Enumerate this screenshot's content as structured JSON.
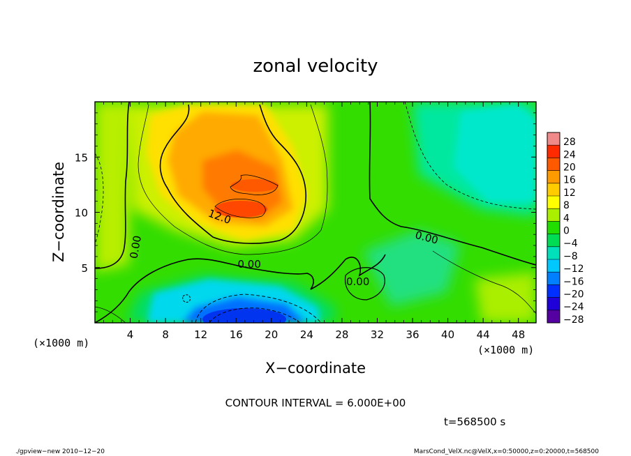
{
  "chart_data": {
    "type": "heatmap",
    "title": "zonal velocity",
    "xlabel": "X−coordinate",
    "ylabel": "Z−coordinate",
    "x_unit": "(×1000 m)",
    "y_unit": "(×1000 m)",
    "xlim": [
      0,
      50
    ],
    "ylim": [
      0,
      20
    ],
    "x_ticks": [
      "4",
      "8",
      "12",
      "16",
      "20",
      "24",
      "28",
      "32",
      "36",
      "40",
      "44",
      "48"
    ],
    "x_tick_values": [
      4,
      8,
      12,
      16,
      20,
      24,
      28,
      32,
      36,
      40,
      44,
      48
    ],
    "y_ticks": [
      "5",
      "10",
      "15"
    ],
    "y_tick_values": [
      5,
      10,
      15
    ],
    "colorbar_labels": [
      "28",
      "24",
      "20",
      "16",
      "12",
      "8",
      "4",
      "0",
      "−4",
      "−8",
      "−12",
      "−16",
      "−20",
      "−24",
      "−28"
    ],
    "colorbar_levels": [
      28,
      24,
      20,
      16,
      12,
      8,
      4,
      0,
      -4,
      -8,
      -12,
      -16,
      -20,
      -24,
      -28
    ],
    "colorbar_colors": [
      "#f08a8a",
      "#ff2a00",
      "#ff5a00",
      "#ff9a00",
      "#ffcc00",
      "#ffff00",
      "#aaee00",
      "#22dd00",
      "#00dd55",
      "#00e0bb",
      "#00c8ff",
      "#0080ff",
      "#0030ff",
      "#2000d8",
      "#5500a0"
    ],
    "contour_labels": [
      {
        "text": "12.0",
        "x": 14.0,
        "y": 9.3,
        "rot": 20
      },
      {
        "text": "0.00",
        "x": 5.0,
        "y": 6.8,
        "rot": -80
      },
      {
        "text": "0.00",
        "x": 17.5,
        "y": 5.0,
        "rot": 0
      },
      {
        "text": "0.00",
        "x": 37.5,
        "y": 7.4,
        "rot": 15
      },
      {
        "text": "0.00",
        "x": 29.8,
        "y": 3.4,
        "rot": 0
      }
    ],
    "features": [
      {
        "value": 22,
        "x": 17,
        "y": 11,
        "rx": 6,
        "ry": 5
      },
      {
        "value": 18,
        "x": 18,
        "y": 14,
        "rx": 4,
        "ry": 5
      },
      {
        "value": -24,
        "x": 18,
        "y": 0.8,
        "rx": 5,
        "ry": 2.5
      },
      {
        "value": -10,
        "x": 43,
        "y": 15,
        "rx": 5,
        "ry": 3
      }
    ],
    "contour_interval": "CONTOUR INTERVAL = 6.000E+00",
    "time": "t=568500 s"
  },
  "footer": {
    "left": "./gpview−new  2010−12−20",
    "right": "MarsCond_VelX.nc@VelX,x=0:50000,z=0:20000,t=568500"
  }
}
